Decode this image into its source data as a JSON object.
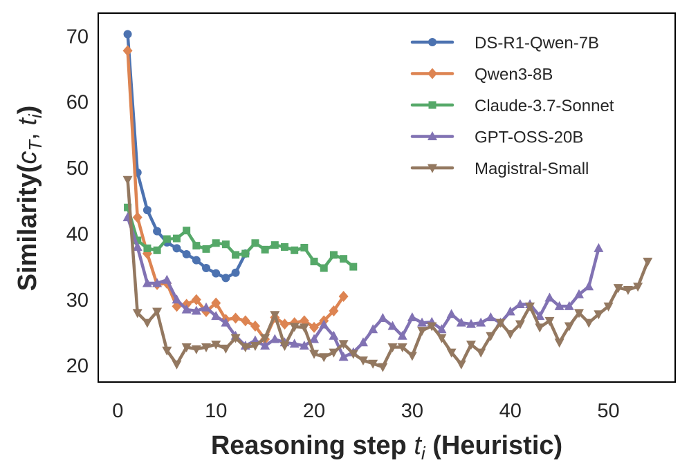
{
  "chart_data": {
    "type": "line",
    "title": "",
    "xlabel": "Reasoning step",
    "xlabel_var": "t",
    "xlabel_sub": "i",
    "xlabel_suffix": "(Heuristic)",
    "ylabel": "Similarity(",
    "ylabel_var_c": "c",
    "ylabel_sub_T": "T",
    "ylabel_comma": ", ",
    "ylabel_var_t": "t",
    "ylabel_sub_i": "i",
    "ylabel_close": ")",
    "xlim": [
      -2,
      56.8
    ],
    "ylim": [
      17.5,
      73.5
    ],
    "xticks": [
      0,
      10,
      20,
      30,
      40,
      50
    ],
    "yticks": [
      20,
      30,
      40,
      50,
      60,
      70
    ],
    "grid": false,
    "legend_position": "top-right",
    "series": [
      {
        "name": "DS-R1-Qwen-7B",
        "color": "#4c72b0",
        "marker": "circle",
        "x": [
          1,
          2,
          3,
          4,
          5,
          6,
          7,
          8,
          9,
          10,
          11,
          12,
          13
        ],
        "y": [
          70.3,
          49.3,
          43.6,
          40.4,
          38.7,
          37.8,
          36.9,
          36.0,
          34.8,
          34.0,
          33.3,
          34.1,
          37.0
        ]
      },
      {
        "name": "Qwen3-8B",
        "color": "#dd8452",
        "marker": "diamond",
        "x": [
          1,
          2,
          3,
          4,
          5,
          6,
          7,
          8,
          9,
          10,
          11,
          12,
          13,
          14,
          15,
          16,
          17,
          18,
          19,
          20,
          21,
          22,
          23
        ],
        "y": [
          67.8,
          42.5,
          37.0,
          32.3,
          32.5,
          29.0,
          29.3,
          30.0,
          28.2,
          29.5,
          27.0,
          27.2,
          26.8,
          26.0,
          24.0,
          27.3,
          26.3,
          26.5,
          26.8,
          25.8,
          26.8,
          28.3,
          30.5
        ]
      },
      {
        "name": "Claude-3.7-Sonnet",
        "color": "#55a868",
        "marker": "square",
        "x": [
          1,
          2,
          3,
          4,
          5,
          6,
          7,
          8,
          9,
          10,
          11,
          12,
          13,
          14,
          15,
          16,
          17,
          18,
          19,
          20,
          21,
          22,
          23,
          24
        ],
        "y": [
          44.0,
          39.0,
          37.8,
          37.5,
          39.2,
          39.3,
          40.5,
          38.2,
          37.7,
          38.6,
          38.4,
          36.8,
          37.0,
          38.6,
          37.6,
          38.3,
          38.0,
          37.5,
          37.9,
          35.8,
          34.8,
          36.8,
          36.2,
          35.0
        ]
      },
      {
        "name": "GPT-OSS-20B",
        "color": "#8172b3",
        "marker": "triangle-up",
        "x": [
          1,
          2,
          3,
          4,
          5,
          6,
          7,
          8,
          9,
          10,
          11,
          12,
          13,
          14,
          15,
          16,
          17,
          18,
          19,
          20,
          21,
          22,
          23,
          24,
          25,
          26,
          27,
          28,
          29,
          30,
          31,
          32,
          33,
          34,
          35,
          36,
          37,
          38,
          39,
          40,
          41,
          42,
          43,
          44,
          45,
          46,
          47,
          48,
          49
        ],
        "y": [
          42.5,
          38.0,
          32.5,
          32.5,
          33.0,
          30.0,
          28.5,
          28.3,
          28.8,
          27.5,
          26.5,
          24.5,
          23.0,
          23.8,
          23.0,
          24.0,
          23.5,
          23.3,
          23.0,
          24.0,
          26.2,
          24.5,
          21.3,
          22.0,
          23.5,
          25.5,
          27.2,
          26.0,
          24.5,
          27.3,
          26.5,
          26.6,
          25.5,
          27.8,
          26.5,
          26.3,
          26.5,
          27.3,
          26.5,
          28.2,
          29.3,
          29.3,
          27.5,
          30.3,
          29.0,
          29.0,
          30.8,
          32.0,
          37.8
        ]
      },
      {
        "name": "Magistral-Small",
        "color": "#937860",
        "marker": "triangle-down",
        "x": [
          1,
          2,
          3,
          4,
          5,
          6,
          7,
          8,
          9,
          10,
          11,
          12,
          13,
          14,
          15,
          16,
          17,
          18,
          19,
          20,
          21,
          22,
          23,
          24,
          25,
          26,
          27,
          28,
          29,
          30,
          31,
          32,
          33,
          34,
          35,
          36,
          37,
          38,
          39,
          40,
          41,
          42,
          43,
          44,
          45,
          46,
          47,
          48,
          49,
          50,
          51,
          52,
          53,
          54
        ],
        "y": [
          48.2,
          28.0,
          26.5,
          28.2,
          22.3,
          20.2,
          22.8,
          22.5,
          22.8,
          23.2,
          22.6,
          24.2,
          22.8,
          23.0,
          24.2,
          27.7,
          23.0,
          25.9,
          25.8,
          21.8,
          21.3,
          22.0,
          23.3,
          21.8,
          20.8,
          20.3,
          19.8,
          22.8,
          22.8,
          21.5,
          25.3,
          26.0,
          24.2,
          22.0,
          20.2,
          23.2,
          22.0,
          24.5,
          26.5,
          24.8,
          26.3,
          29.0,
          25.8,
          26.8,
          23.5,
          26.0,
          28.0,
          26.5,
          27.8,
          29.0,
          31.8,
          31.5,
          32.0,
          35.8
        ]
      }
    ]
  }
}
